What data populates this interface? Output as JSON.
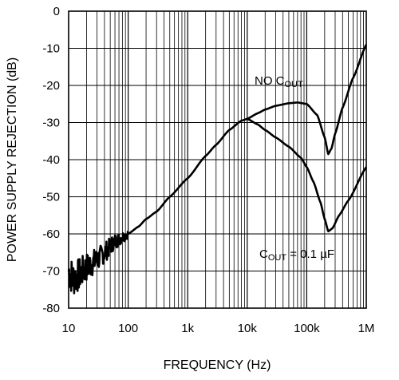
{
  "chart_data": {
    "type": "line",
    "xlabel": "FREQUENCY (Hz)",
    "ylabel": "POWER SUPPLY REJECTION (dB)",
    "x_scale": "log",
    "xlim": [
      10,
      1000000
    ],
    "ylim": [
      -80,
      0
    ],
    "grid": true,
    "x_ticks": [
      {
        "value": 10,
        "label": "10"
      },
      {
        "value": 100,
        "label": "100"
      },
      {
        "value": 1000,
        "label": "1k"
      },
      {
        "value": 10000,
        "label": "10k"
      },
      {
        "value": 100000,
        "label": "100k"
      },
      {
        "value": 1000000,
        "label": "1M"
      }
    ],
    "y_ticks": [
      {
        "value": 0,
        "label": "0"
      },
      {
        "value": -10,
        "label": "-10"
      },
      {
        "value": -20,
        "label": "-20"
      },
      {
        "value": -30,
        "label": "-30"
      },
      {
        "value": -40,
        "label": "-40"
      },
      {
        "value": -50,
        "label": "-50"
      },
      {
        "value": -60,
        "label": "-60"
      },
      {
        "value": -70,
        "label": "-70"
      },
      {
        "value": -80,
        "label": "-80"
      }
    ],
    "common": {
      "x": [
        10,
        12,
        15,
        20,
        30,
        40,
        60,
        100,
        150,
        200,
        300,
        500,
        1000,
        2000,
        3000,
        5000,
        8000,
        10000
      ],
      "y": [
        -70,
        -72,
        -71,
        -69,
        -67,
        -65,
        -62,
        -60,
        -58,
        -56,
        -54,
        -50,
        -45,
        -39,
        -36,
        -32,
        -29.5,
        -29
      ],
      "noise_until": 100
    },
    "series": [
      {
        "label_main": "NO C",
        "label_sub": "OUT",
        "label_tail": "",
        "x": [
          10000,
          15000,
          20000,
          30000,
          50000,
          70000,
          100000,
          150000,
          200000,
          230000,
          260000,
          300000,
          400000,
          600000,
          1000000
        ],
        "y": [
          -29,
          -27.5,
          -26.5,
          -25.5,
          -24.8,
          -24.6,
          -25,
          -28,
          -34,
          -38.5,
          -37,
          -33,
          -26,
          -18,
          -9
        ]
      },
      {
        "label_main": "C",
        "label_sub": "OUT",
        "label_tail": " = 0.1 µF",
        "x": [
          10000,
          15000,
          20000,
          30000,
          50000,
          80000,
          100000,
          130000,
          170000,
          200000,
          230000,
          270000,
          350000,
          500000,
          1000000
        ],
        "y": [
          -29,
          -30.5,
          -32,
          -34,
          -36.5,
          -39.5,
          -42,
          -46,
          -51.5,
          -56,
          -59.3,
          -58.5,
          -55,
          -51,
          -42
        ]
      }
    ]
  }
}
